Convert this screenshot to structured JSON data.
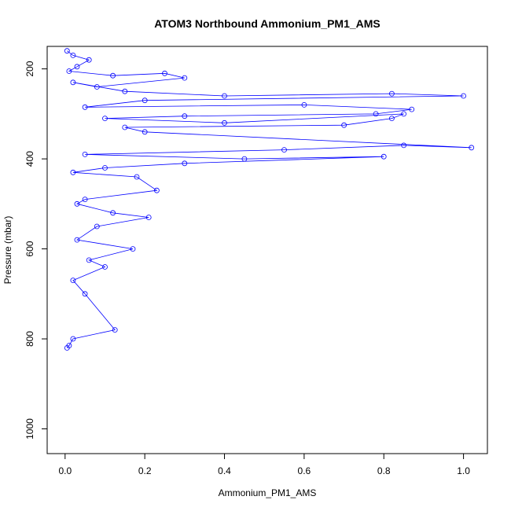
{
  "chart_data": {
    "type": "line",
    "title": "ATOM3 Northbound Ammonium_PM1_AMS",
    "xlabel": "Ammonium_PM1_AMS",
    "ylabel": "Pressure (mbar)",
    "xlim": [
      -0.045,
      1.06
    ],
    "ylim": [
      1055,
      150
    ],
    "y_reversed": true,
    "x_ticks": [
      0.0,
      0.2,
      0.4,
      0.6,
      0.8,
      1.0
    ],
    "x_tick_labels": [
      "0.0",
      "0.2",
      "0.4",
      "0.6",
      "0.8",
      "1.0"
    ],
    "y_ticks": [
      200,
      400,
      600,
      800,
      1000
    ],
    "y_tick_labels": [
      "200",
      "400",
      "600",
      "800",
      "1000"
    ],
    "grid": false,
    "legend": "none",
    "series": [
      {
        "color": "#0000ff",
        "marker": "open-circle",
        "x": [
          0.005,
          0.02,
          0.06,
          0.03,
          0.01,
          0.12,
          0.25,
          0.3,
          0.08,
          0.02,
          0.15,
          0.4,
          0.82,
          1.0,
          0.2,
          0.05,
          0.6,
          0.87,
          0.78,
          0.3,
          0.1,
          0.4,
          0.85,
          0.82,
          0.7,
          0.15,
          0.2,
          1.02,
          0.85,
          0.55,
          0.05,
          0.45,
          0.8,
          0.3,
          0.1,
          0.02,
          0.18,
          0.23,
          0.05,
          0.03,
          0.12,
          0.21,
          0.08,
          0.03,
          0.17,
          0.06,
          0.1,
          0.02,
          0.05,
          0.125,
          0.02,
          0.01,
          0.005
        ],
        "y": [
          160,
          170,
          180,
          195,
          205,
          215,
          210,
          220,
          240,
          230,
          250,
          260,
          255,
          260,
          270,
          285,
          280,
          290,
          300,
          305,
          310,
          320,
          300,
          310,
          325,
          330,
          340,
          375,
          370,
          380,
          390,
          400,
          395,
          410,
          420,
          430,
          440,
          470,
          490,
          500,
          520,
          530,
          550,
          580,
          600,
          625,
          640,
          670,
          700,
          780,
          800,
          815,
          820
        ]
      }
    ]
  }
}
